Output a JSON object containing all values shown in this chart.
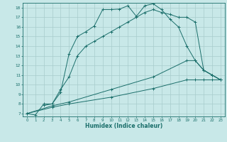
{
  "background_color": "#c8e8e8",
  "grid_color": "#a8cccc",
  "line_color": "#1a6e6a",
  "xlabel": "Humidex (Indice chaleur)",
  "xlim": [
    -0.5,
    23.5
  ],
  "ylim": [
    6.7,
    18.5
  ],
  "yticks": [
    7,
    8,
    9,
    10,
    11,
    12,
    13,
    14,
    15,
    16,
    17,
    18
  ],
  "xticks": [
    0,
    1,
    2,
    3,
    4,
    5,
    6,
    7,
    8,
    9,
    10,
    11,
    12,
    13,
    14,
    15,
    16,
    17,
    18,
    19,
    20,
    21,
    22,
    23
  ],
  "line1_x": [
    0,
    1,
    2,
    3,
    4,
    5,
    6,
    7,
    8,
    9,
    10,
    11,
    12,
    13,
    14,
    15,
    16,
    17,
    18,
    19,
    20,
    21,
    22,
    23
  ],
  "line1_y": [
    7.0,
    6.85,
    8.0,
    8.0,
    9.2,
    13.2,
    15.0,
    15.5,
    16.1,
    17.8,
    17.8,
    17.85,
    18.2,
    17.1,
    18.2,
    18.4,
    17.8,
    16.8,
    16.0,
    14.0,
    12.5,
    11.5,
    11.0,
    10.5
  ],
  "line2_x": [
    2,
    3,
    4,
    5,
    6,
    7,
    8,
    9,
    10,
    11,
    12,
    13,
    14,
    15,
    16,
    17,
    18,
    19,
    20,
    21,
    22,
    23
  ],
  "line2_y": [
    7.85,
    8.0,
    9.5,
    10.8,
    13.0,
    14.0,
    14.5,
    15.0,
    15.5,
    16.0,
    16.5,
    17.0,
    17.5,
    17.8,
    17.5,
    17.3,
    17.0,
    17.0,
    16.5,
    11.5,
    11.0,
    10.5
  ],
  "line3_x": [
    0,
    3,
    5,
    10,
    15,
    19,
    20,
    21,
    22,
    23
  ],
  "line3_y": [
    7.0,
    7.8,
    8.2,
    9.5,
    10.8,
    12.5,
    12.5,
    11.5,
    11.0,
    10.5
  ],
  "line4_x": [
    0,
    3,
    5,
    10,
    15,
    19,
    20,
    21,
    22,
    23
  ],
  "line4_y": [
    7.0,
    7.65,
    8.0,
    8.7,
    9.6,
    10.5,
    10.5,
    10.5,
    10.5,
    10.5
  ]
}
